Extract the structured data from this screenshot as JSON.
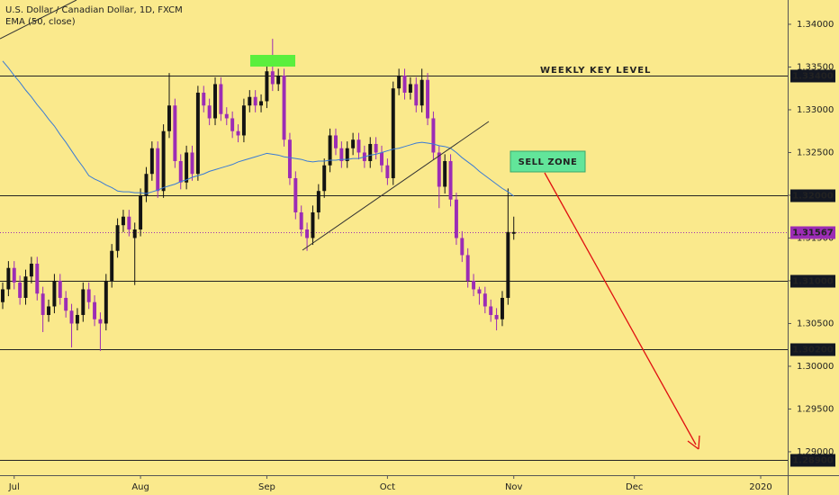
{
  "chart_data": {
    "type": "candlestick",
    "title": "U.S. Dollar / Canadian Dollar, 1D, FXCM",
    "up_color": "#131313",
    "down_color": "#9c2cb5",
    "open": [
      1.3075,
      1.309,
      1.3115,
      1.3098,
      1.308,
      1.3105,
      1.312,
      1.3085,
      1.306,
      1.307,
      1.31,
      1.308,
      1.3065,
      1.305,
      1.306,
      1.309,
      1.3075,
      1.3055,
      1.305,
      1.31,
      1.3135,
      1.3165,
      1.3175,
      1.315,
      1.316,
      1.32,
      1.3225,
      1.3255,
      1.3205,
      1.3275,
      1.3305,
      1.324,
      1.3215,
      1.325,
      1.3225,
      1.332,
      1.3305,
      1.329,
      1.333,
      1.3295,
      1.329,
      1.3275,
      1.327,
      1.3305,
      1.3315,
      1.3305,
      1.331,
      1.3345,
      1.333,
      1.334,
      1.3265,
      1.322,
      1.318,
      1.316,
      1.315,
      1.318,
      1.3205,
      1.3235,
      1.327,
      1.3255,
      1.324,
      1.3255,
      1.3265,
      1.325,
      1.324,
      1.326,
      1.325,
      1.3235,
      1.322,
      1.3325,
      1.334,
      1.332,
      1.333,
      1.3305,
      1.3335,
      1.329,
      1.325,
      1.321,
      1.324,
      1.3195,
      1.315,
      1.313,
      1.31,
      1.309,
      1.3085,
      1.307,
      1.306,
      1.3055,
      1.308,
      1.3155
    ],
    "high": [
      1.3098,
      1.3123,
      1.3123,
      1.3106,
      1.3113,
      1.3128,
      1.3128,
      1.3093,
      1.3078,
      1.3108,
      1.3108,
      1.3088,
      1.3073,
      1.3068,
      1.3098,
      1.3098,
      1.3083,
      1.3063,
      1.3108,
      1.3143,
      1.3173,
      1.3183,
      1.3183,
      1.3168,
      1.3208,
      1.3233,
      1.3263,
      1.3263,
      1.3283,
      1.3343,
      1.3313,
      1.3248,
      1.3258,
      1.3258,
      1.3328,
      1.3328,
      1.3313,
      1.3338,
      1.3338,
      1.3303,
      1.3298,
      1.3283,
      1.3313,
      1.3323,
      1.3323,
      1.3318,
      1.3353,
      1.3383,
      1.3348,
      1.3348,
      1.3273,
      1.3228,
      1.3188,
      1.3168,
      1.3188,
      1.3213,
      1.3243,
      1.3278,
      1.3278,
      1.3263,
      1.3263,
      1.3273,
      1.3273,
      1.3258,
      1.3268,
      1.3268,
      1.3258,
      1.3243,
      1.3333,
      1.3348,
      1.3348,
      1.3338,
      1.3338,
      1.3348,
      1.3343,
      1.3298,
      1.3258,
      1.3248,
      1.3248,
      1.3203,
      1.3158,
      1.3138,
      1.3108,
      1.3093,
      1.3093,
      1.3078,
      1.3068,
      1.3088,
      1.3208,
      1.3175
    ],
    "low": [
      1.3067,
      1.3082,
      1.309,
      1.3072,
      1.3072,
      1.3097,
      1.3077,
      1.304,
      1.3052,
      1.3062,
      1.3072,
      1.3057,
      1.3022,
      1.3042,
      1.3052,
      1.3067,
      1.3047,
      1.3018,
      1.3042,
      1.3092,
      1.3127,
      1.3157,
      1.3152,
      1.3095,
      1.3152,
      1.3192,
      1.3217,
      1.3197,
      1.3197,
      1.3267,
      1.3232,
      1.3207,
      1.3207,
      1.3217,
      1.3217,
      1.3297,
      1.3282,
      1.3282,
      1.3287,
      1.3282,
      1.3267,
      1.3262,
      1.3262,
      1.3297,
      1.3297,
      1.3297,
      1.3302,
      1.3322,
      1.3322,
      1.3257,
      1.3212,
      1.3172,
      1.3152,
      1.3135,
      1.3142,
      1.3172,
      1.3197,
      1.3227,
      1.3247,
      1.3232,
      1.3232,
      1.3247,
      1.3242,
      1.3232,
      1.3232,
      1.3242,
      1.3227,
      1.3212,
      1.3212,
      1.3317,
      1.3312,
      1.3312,
      1.3297,
      1.3297,
      1.3282,
      1.3242,
      1.3185,
      1.3202,
      1.3187,
      1.3142,
      1.3122,
      1.3092,
      1.3082,
      1.3072,
      1.3062,
      1.3052,
      1.3042,
      1.3047,
      1.3072,
      1.3148
    ],
    "close": [
      1.309,
      1.3115,
      1.3098,
      1.308,
      1.3105,
      1.312,
      1.3085,
      1.306,
      1.307,
      1.31,
      1.308,
      1.3065,
      1.305,
      1.306,
      1.309,
      1.3075,
      1.3055,
      1.305,
      1.31,
      1.3135,
      1.3165,
      1.3175,
      1.316,
      1.316,
      1.32,
      1.3225,
      1.3255,
      1.3205,
      1.3275,
      1.3305,
      1.324,
      1.3215,
      1.325,
      1.3225,
      1.332,
      1.3305,
      1.329,
      1.333,
      1.3295,
      1.329,
      1.3275,
      1.327,
      1.3305,
      1.3315,
      1.3305,
      1.331,
      1.3345,
      1.333,
      1.334,
      1.3265,
      1.322,
      1.318,
      1.316,
      1.315,
      1.318,
      1.3205,
      1.3235,
      1.327,
      1.3255,
      1.324,
      1.3255,
      1.3265,
      1.325,
      1.324,
      1.326,
      1.325,
      1.3235,
      1.322,
      1.3325,
      1.334,
      1.332,
      1.333,
      1.3305,
      1.3335,
      1.329,
      1.325,
      1.321,
      1.324,
      1.3195,
      1.315,
      1.313,
      1.31,
      1.309,
      1.3085,
      1.307,
      1.306,
      1.3055,
      1.308,
      1.3157,
      1.3157
    ],
    "ema": {
      "name": "EMA (50, close)",
      "color": "#3a7bd5",
      "values": [
        1.3357,
        1.3349,
        1.334,
        1.3332,
        1.3323,
        1.3315,
        1.3306,
        1.3298,
        1.3289,
        1.3281,
        1.3271,
        1.3262,
        1.3252,
        1.3242,
        1.3233,
        1.3223,
        1.3219,
        1.3216,
        1.3212,
        1.3209,
        1.3205,
        1.3204,
        1.3204,
        1.3203,
        1.3203,
        1.3202,
        1.3204,
        1.3206,
        1.3209,
        1.3211,
        1.3213,
        1.3216,
        1.3218,
        1.3221,
        1.3223,
        1.3225,
        1.3228,
        1.323,
        1.3232,
        1.3234,
        1.3236,
        1.3239,
        1.3241,
        1.3243,
        1.3245,
        1.3247,
        1.3249,
        1.3248,
        1.3247,
        1.3245,
        1.3244,
        1.3243,
        1.3242,
        1.324,
        1.3239,
        1.324,
        1.324,
        1.3241,
        1.3241,
        1.3242,
        1.3242,
        1.3243,
        1.3243,
        1.3245,
        1.3247,
        1.3248,
        1.325,
        1.3252,
        1.3254,
        1.3255,
        1.3257,
        1.3259,
        1.3261,
        1.3262,
        1.3261,
        1.326,
        1.3258,
        1.3257,
        1.3255,
        1.325,
        1.3244,
        1.3239,
        1.3234,
        1.3228,
        1.3223,
        1.3218,
        1.3213,
        1.3208,
        1.3204,
        1.3199
      ]
    },
    "xlim": [
      -0.47,
      136.7
    ],
    "xticks": [
      {
        "value": 2,
        "label": "Jul"
      },
      {
        "value": 24,
        "label": "Aug"
      },
      {
        "value": 46,
        "label": "Sep"
      },
      {
        "value": 67,
        "label": "Oct"
      },
      {
        "value": 89,
        "label": "Nov"
      },
      {
        "value": 110,
        "label": "Dec"
      },
      {
        "value": 132,
        "label": "2020"
      }
    ],
    "ylim": [
      1.28726,
      1.34284
    ],
    "yticks": [
      {
        "value": 1.29,
        "label": "1.29000"
      },
      {
        "value": 1.295,
        "label": "1.29500"
      },
      {
        "value": 1.3,
        "label": "1.30000"
      },
      {
        "value": 1.305,
        "label": "1.30500"
      },
      {
        "value": 1.31,
        "label": "1.31000"
      },
      {
        "value": 1.315,
        "label": "1.31500"
      },
      {
        "value": 1.32,
        "label": "1.32000"
      },
      {
        "value": 1.325,
        "label": "1.32500"
      },
      {
        "value": 1.33,
        "label": "1.33000"
      },
      {
        "value": 1.335,
        "label": "1.33500"
      },
      {
        "value": 1.34,
        "label": "1.34000"
      }
    ],
    "levels": [
      {
        "value": 1.334,
        "label": "1.33400"
      },
      {
        "value": 1.32,
        "label": "1.32000"
      },
      {
        "value": 1.31,
        "label": "1.31000"
      },
      {
        "value": 1.302,
        "label": "1.30200"
      },
      {
        "value": 1.289,
        "label": "1.28900"
      }
    ],
    "last_price": {
      "value": 1.31567,
      "label": "1.31567"
    },
    "annotations": {
      "weekly_key_level": "WEEKLY KEY LEVEL",
      "sell_zone": "SELL ZONE"
    }
  }
}
